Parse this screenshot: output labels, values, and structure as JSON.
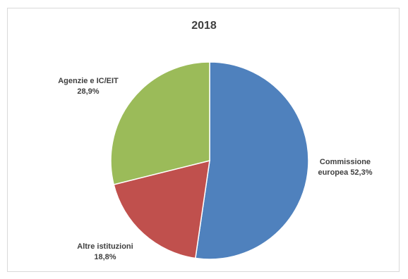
{
  "chart_data": {
    "type": "pie",
    "title": "2018",
    "categories": [
      "Commissione europea",
      "Altre istituzioni",
      "Agenzie e IC/EIT"
    ],
    "values": [
      52.3,
      18.8,
      28.9
    ],
    "value_labels": [
      "52,3%",
      "18,8%",
      "28,9%"
    ],
    "colors": [
      "#4f81bd",
      "#c0504d",
      "#9bbb59"
    ],
    "start_angle_deg": 0,
    "direction": "clockwise",
    "legend": "none"
  },
  "labels": {
    "commissione": {
      "line1": "Commissione",
      "line2": "europea 52,3%"
    },
    "altre": {
      "line1": "Altre istituzioni",
      "line2": "18,8%"
    },
    "agenzie": {
      "line1": "Agenzie e IC/EIT",
      "line2": "28,9%"
    }
  }
}
